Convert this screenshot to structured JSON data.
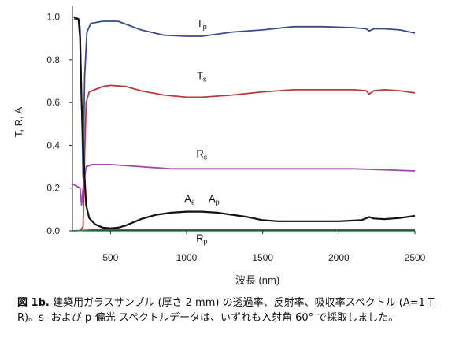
{
  "chart_data": {
    "type": "line",
    "title": "",
    "xlabel": "波長 (nm)",
    "ylabel": "T, R, A",
    "xlim": [
      250,
      2500
    ],
    "ylim": [
      0,
      1.05
    ],
    "xticks": [
      500,
      1000,
      1500,
      2000,
      2500
    ],
    "yticks": [
      0.0,
      0.2,
      0.4,
      0.6,
      0.8,
      1.0
    ],
    "xtick_labels": [
      "500",
      "1000",
      "1500",
      "2000",
      "2500"
    ],
    "ytick_labels": [
      "0.0",
      "0.2",
      "0.4",
      "0.6",
      "0.8",
      "1.0"
    ],
    "grid": false,
    "legend": "none",
    "series": [
      {
        "name": "Tp",
        "color": "#3a4a8c",
        "points": [
          [
            260,
            0.99
          ],
          [
            290,
            0.99
          ],
          [
            300,
            0.95
          ],
          [
            310,
            0.62
          ],
          [
            320,
            0.25
          ],
          [
            330,
            0.72
          ],
          [
            345,
            0.93
          ],
          [
            370,
            0.97
          ],
          [
            450,
            0.98
          ],
          [
            550,
            0.98
          ],
          [
            700,
            0.94
          ],
          [
            850,
            0.915
          ],
          [
            1000,
            0.91
          ],
          [
            1100,
            0.91
          ],
          [
            1300,
            0.93
          ],
          [
            1500,
            0.94
          ],
          [
            1700,
            0.955
          ],
          [
            1900,
            0.955
          ],
          [
            2100,
            0.95
          ],
          [
            2180,
            0.945
          ],
          [
            2200,
            0.935
          ],
          [
            2230,
            0.945
          ],
          [
            2300,
            0.945
          ],
          [
            2400,
            0.94
          ],
          [
            2500,
            0.925
          ]
        ]
      },
      {
        "name": "Ts",
        "color": "#b83a3a",
        "points": [
          [
            300,
            0.0
          ],
          [
            320,
            0.02
          ],
          [
            330,
            0.35
          ],
          [
            340,
            0.6
          ],
          [
            360,
            0.65
          ],
          [
            450,
            0.675
          ],
          [
            500,
            0.68
          ],
          [
            600,
            0.675
          ],
          [
            700,
            0.655
          ],
          [
            850,
            0.635
          ],
          [
            1000,
            0.625
          ],
          [
            1100,
            0.625
          ],
          [
            1300,
            0.635
          ],
          [
            1500,
            0.65
          ],
          [
            1700,
            0.66
          ],
          [
            1900,
            0.66
          ],
          [
            2100,
            0.66
          ],
          [
            2180,
            0.655
          ],
          [
            2200,
            0.64
          ],
          [
            2230,
            0.655
          ],
          [
            2300,
            0.66
          ],
          [
            2400,
            0.655
          ],
          [
            2500,
            0.645
          ]
        ]
      },
      {
        "name": "Rs",
        "color": "#a04aa8",
        "points": [
          [
            250,
            0.22
          ],
          [
            300,
            0.2
          ],
          [
            310,
            0.12
          ],
          [
            320,
            0.2
          ],
          [
            340,
            0.3
          ],
          [
            380,
            0.31
          ],
          [
            500,
            0.31
          ],
          [
            700,
            0.3
          ],
          [
            900,
            0.29
          ],
          [
            1100,
            0.29
          ],
          [
            1300,
            0.29
          ],
          [
            1500,
            0.29
          ],
          [
            1700,
            0.29
          ],
          [
            1900,
            0.29
          ],
          [
            2100,
            0.29
          ],
          [
            2300,
            0.285
          ],
          [
            2500,
            0.28
          ]
        ]
      },
      {
        "name": "Rp",
        "color": "#2e7d3e",
        "points": [
          [
            250,
            0.0
          ],
          [
            400,
            0.005
          ],
          [
            800,
            0.005
          ],
          [
            1200,
            0.005
          ],
          [
            1600,
            0.005
          ],
          [
            2000,
            0.005
          ],
          [
            2500,
            0.005
          ]
        ]
      },
      {
        "name": "As/Ap",
        "color": "#111111",
        "points": [
          [
            260,
            1.0
          ],
          [
            290,
            0.99
          ],
          [
            300,
            0.9
          ],
          [
            310,
            0.6
          ],
          [
            320,
            0.4
          ],
          [
            330,
            0.25
          ],
          [
            340,
            0.12
          ],
          [
            360,
            0.06
          ],
          [
            400,
            0.03
          ],
          [
            450,
            0.015
          ],
          [
            500,
            0.012
          ],
          [
            550,
            0.015
          ],
          [
            600,
            0.025
          ],
          [
            700,
            0.055
          ],
          [
            800,
            0.075
          ],
          [
            900,
            0.085
          ],
          [
            1000,
            0.09
          ],
          [
            1100,
            0.09
          ],
          [
            1200,
            0.085
          ],
          [
            1300,
            0.075
          ],
          [
            1400,
            0.065
          ],
          [
            1500,
            0.05
          ],
          [
            1600,
            0.045
          ],
          [
            1800,
            0.045
          ],
          [
            2000,
            0.045
          ],
          [
            2150,
            0.05
          ],
          [
            2200,
            0.065
          ],
          [
            2230,
            0.058
          ],
          [
            2300,
            0.055
          ],
          [
            2400,
            0.06
          ],
          [
            2500,
            0.07
          ]
        ]
      }
    ],
    "annotations": [
      {
        "text": "T",
        "sub": "p",
        "x": 1100,
        "y": 0.955
      },
      {
        "text": "T",
        "sub": "s",
        "x": 1100,
        "y": 0.71
      },
      {
        "text": "R",
        "sub": "s",
        "x": 1100,
        "y": 0.345
      },
      {
        "text": "A",
        "sub": "s",
        "x": 1020,
        "y": 0.135
      },
      {
        "text": "A",
        "sub": "p",
        "x": 1180,
        "y": 0.135
      },
      {
        "text": "R",
        "sub": "p",
        "x": 1100,
        "y": -0.05
      }
    ]
  },
  "caption": {
    "label": "図 1b.",
    "text": " 建築用ガラスサンプル (厚さ 2 mm) の透過率、反射率、吸収率スペクトル (A=1-T-R)。s- および p-偏光 スペクトルデータは、いずれも入射角 60° で採取しました。"
  }
}
